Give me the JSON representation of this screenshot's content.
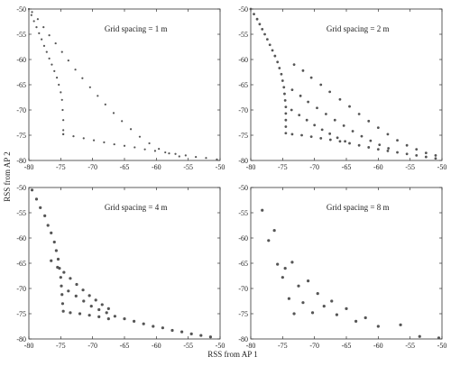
{
  "figure": {
    "xlabel": "RSS from AP 1",
    "ylabel": "RSS from AP 2"
  },
  "chart_data": [
    {
      "type": "scatter",
      "title": "Grid spacing = 1 m",
      "xlim": [
        -80,
        -50
      ],
      "ylim": [
        -80,
        -50
      ],
      "xticks": [
        -80,
        -75,
        -70,
        -65,
        -60,
        -55,
        -50
      ],
      "yticks": [
        -50,
        -55,
        -60,
        -65,
        -70,
        -75,
        -80
      ],
      "marker": "dot-dense",
      "points": [
        [
          -80.0,
          -50.0
        ],
        [
          -79.6,
          -51.2
        ],
        [
          -79.2,
          -52.4
        ],
        [
          -78.8,
          -53.6
        ],
        [
          -78.4,
          -54.8
        ],
        [
          -78.0,
          -56.0
        ],
        [
          -77.6,
          -57.3
        ],
        [
          -77.2,
          -58.5
        ],
        [
          -76.8,
          -59.8
        ],
        [
          -76.4,
          -61.0
        ],
        [
          -76.0,
          -62.3
        ],
        [
          -75.6,
          -63.6
        ],
        [
          -75.3,
          -65.0
        ],
        [
          -75.0,
          -66.5
        ],
        [
          -74.8,
          -68.0
        ],
        [
          -74.7,
          -70.0
        ],
        [
          -74.6,
          -72.0
        ],
        [
          -74.6,
          -74.0
        ],
        [
          -74.6,
          -74.8
        ],
        [
          -79.5,
          -50.6
        ],
        [
          -78.6,
          -52.0
        ],
        [
          -77.7,
          -53.6
        ],
        [
          -76.8,
          -55.2
        ],
        [
          -75.8,
          -56.8
        ],
        [
          -74.8,
          -58.5
        ],
        [
          -73.8,
          -60.2
        ],
        [
          -72.7,
          -62.0
        ],
        [
          -71.6,
          -63.7
        ],
        [
          -70.4,
          -65.5
        ],
        [
          -69.2,
          -67.2
        ],
        [
          -68.0,
          -68.9
        ],
        [
          -66.7,
          -70.6
        ],
        [
          -65.4,
          -72.2
        ],
        [
          -64.0,
          -73.8
        ],
        [
          -62.6,
          -75.3
        ],
        [
          -61.1,
          -76.6
        ],
        [
          -59.6,
          -77.7
        ],
        [
          -58.0,
          -78.6
        ],
        [
          -56.4,
          -79.2
        ],
        [
          -74.6,
          -74.8
        ],
        [
          -73.0,
          -75.2
        ],
        [
          -71.4,
          -75.6
        ],
        [
          -69.8,
          -76.0
        ],
        [
          -68.2,
          -76.4
        ],
        [
          -66.6,
          -76.8
        ],
        [
          -65.0,
          -77.1
        ],
        [
          -63.4,
          -77.4
        ],
        [
          -61.8,
          -77.8
        ],
        [
          -60.2,
          -78.1
        ],
        [
          -58.6,
          -78.4
        ],
        [
          -57.0,
          -78.7
        ],
        [
          -55.4,
          -79.0
        ],
        [
          -53.8,
          -79.3
        ],
        [
          -52.2,
          -79.5
        ],
        [
          -50.5,
          -79.8
        ]
      ]
    },
    {
      "type": "scatter",
      "title": "Grid spacing = 2 m",
      "xlim": [
        -80,
        -50
      ],
      "ylim": [
        -80,
        -50
      ],
      "xticks": [
        -80,
        -75,
        -70,
        -65,
        -60,
        -55,
        -50
      ],
      "yticks": [
        -50,
        -55,
        -60,
        -65,
        -70,
        -75,
        -80
      ],
      "marker": "dot-medium",
      "points": [
        [
          -80.0,
          -50.0
        ],
        [
          -79.5,
          -51.0
        ],
        [
          -79.0,
          -52.0
        ],
        [
          -78.6,
          -53.0
        ],
        [
          -78.2,
          -54.0
        ],
        [
          -77.8,
          -55.0
        ],
        [
          -77.4,
          -56.0
        ],
        [
          -77.0,
          -57.1
        ],
        [
          -76.6,
          -58.2
        ],
        [
          -76.2,
          -59.3
        ],
        [
          -75.8,
          -60.5
        ],
        [
          -75.5,
          -61.7
        ],
        [
          -75.2,
          -62.9
        ],
        [
          -75.0,
          -64.2
        ],
        [
          -74.8,
          -65.5
        ],
        [
          -74.7,
          -66.8
        ],
        [
          -74.6,
          -68.1
        ],
        [
          -74.5,
          -69.4
        ],
        [
          -74.5,
          -70.7
        ],
        [
          -74.5,
          -72.0
        ],
        [
          -74.5,
          -73.3
        ],
        [
          -74.5,
          -74.6
        ],
        [
          -73.2,
          -61.0
        ],
        [
          -71.8,
          -62.2
        ],
        [
          -70.5,
          -63.6
        ],
        [
          -69.0,
          -65.0
        ],
        [
          -67.6,
          -66.4
        ],
        [
          -66.0,
          -67.9
        ],
        [
          -64.5,
          -69.3
        ],
        [
          -63.0,
          -70.8
        ],
        [
          -61.5,
          -72.2
        ],
        [
          -60.0,
          -73.5
        ],
        [
          -58.5,
          -74.8
        ],
        [
          -57.0,
          -76.0
        ],
        [
          -55.5,
          -77.0
        ],
        [
          -54.0,
          -77.8
        ],
        [
          -52.5,
          -78.5
        ],
        [
          -51.0,
          -79.0
        ],
        [
          -73.5,
          -66.0
        ],
        [
          -72.2,
          -67.2
        ],
        [
          -71.0,
          -68.4
        ],
        [
          -69.6,
          -69.6
        ],
        [
          -68.2,
          -70.8
        ],
        [
          -66.8,
          -72.0
        ],
        [
          -65.4,
          -73.1
        ],
        [
          -64.0,
          -74.2
        ],
        [
          -62.6,
          -75.2
        ],
        [
          -61.2,
          -76.1
        ],
        [
          -59.8,
          -76.9
        ],
        [
          -58.4,
          -77.6
        ],
        [
          -73.6,
          -70.0
        ],
        [
          -72.4,
          -71.0
        ],
        [
          -71.2,
          -72.0
        ],
        [
          -70.0,
          -73.0
        ],
        [
          -68.8,
          -73.9
        ],
        [
          -67.6,
          -74.7
        ],
        [
          -66.4,
          -75.5
        ],
        [
          -65.2,
          -76.2
        ],
        [
          -73.5,
          -74.8
        ],
        [
          -72.0,
          -75.0
        ],
        [
          -70.5,
          -75.3
        ],
        [
          -69.0,
          -75.6
        ],
        [
          -67.5,
          -75.9
        ],
        [
          -66.0,
          -76.2
        ],
        [
          -64.5,
          -76.6
        ],
        [
          -63.0,
          -77.0
        ],
        [
          -61.5,
          -77.4
        ],
        [
          -60.0,
          -77.8
        ],
        [
          -58.5,
          -78.1
        ],
        [
          -57.0,
          -78.4
        ],
        [
          -55.5,
          -78.7
        ],
        [
          -54.0,
          -79.0
        ],
        [
          -52.5,
          -79.3
        ],
        [
          -51.0,
          -79.6
        ]
      ]
    },
    {
      "type": "scatter",
      "title": "Grid spacing = 4 m",
      "xlim": [
        -80,
        -50
      ],
      "ylim": [
        -80,
        -50
      ],
      "xticks": [
        -80,
        -75,
        -70,
        -65,
        -60,
        -55,
        -50
      ],
      "yticks": [
        -50,
        -55,
        -60,
        -65,
        -70,
        -75,
        -80
      ],
      "marker": "dot-sparse",
      "points": [
        [
          -79.5,
          -50.5
        ],
        [
          -78.8,
          -52.3
        ],
        [
          -78.2,
          -54.0
        ],
        [
          -77.5,
          -55.6
        ],
        [
          -77.0,
          -57.5
        ],
        [
          -76.5,
          -59.0
        ],
        [
          -76.0,
          -60.8
        ],
        [
          -75.7,
          -62.5
        ],
        [
          -75.4,
          -64.2
        ],
        [
          -75.2,
          -66.0
        ],
        [
          -75.0,
          -67.8
        ],
        [
          -74.9,
          -69.5
        ],
        [
          -74.8,
          -71.2
        ],
        [
          -74.7,
          -73.0
        ],
        [
          -74.6,
          -74.5
        ],
        [
          -76.5,
          -64.5
        ],
        [
          -75.5,
          -65.8
        ],
        [
          -74.5,
          -66.8
        ],
        [
          -73.5,
          -68.0
        ],
        [
          -72.5,
          -69.2
        ],
        [
          -71.5,
          -70.3
        ],
        [
          -70.5,
          -71.4
        ],
        [
          -69.5,
          -72.3
        ],
        [
          -68.5,
          -73.2
        ],
        [
          -67.5,
          -74.0
        ],
        [
          -73.8,
          -70.5
        ],
        [
          -72.6,
          -71.5
        ],
        [
          -71.4,
          -72.5
        ],
        [
          -70.2,
          -73.5
        ],
        [
          -69.0,
          -74.2
        ],
        [
          -67.8,
          -74.8
        ],
        [
          -66.5,
          -75.5
        ],
        [
          -65.0,
          -76.0
        ],
        [
          -63.5,
          -76.5
        ],
        [
          -62.0,
          -77.0
        ],
        [
          -60.5,
          -77.5
        ],
        [
          -59.0,
          -77.8
        ],
        [
          -57.5,
          -78.3
        ],
        [
          -56.0,
          -78.6
        ],
        [
          -54.5,
          -79.0
        ],
        [
          -53.0,
          -79.3
        ],
        [
          -51.5,
          -79.6
        ],
        [
          -73.5,
          -74.8
        ],
        [
          -72.0,
          -75.0
        ],
        [
          -70.5,
          -75.3
        ],
        [
          -69.0,
          -75.6
        ],
        [
          -67.5,
          -76.0
        ]
      ]
    },
    {
      "type": "scatter",
      "title": "Grid spacing = 8 m",
      "xlim": [
        -80,
        -50
      ],
      "ylim": [
        -80,
        -50
      ],
      "xticks": [
        -80,
        -75,
        -70,
        -65,
        -60,
        -55,
        -50
      ],
      "yticks": [
        -50,
        -55,
        -60,
        -65,
        -70,
        -75,
        -80
      ],
      "marker": "dot-sparse",
      "points": [
        [
          -78.2,
          -54.5
        ],
        [
          -77.2,
          -60.5
        ],
        [
          -76.3,
          -58.5
        ],
        [
          -75.8,
          -65.2
        ],
        [
          -75.0,
          -67.8
        ],
        [
          -74.6,
          -66.0
        ],
        [
          -74.0,
          -72.0
        ],
        [
          -73.5,
          -64.8
        ],
        [
          -73.2,
          -75.0
        ],
        [
          -72.5,
          -69.5
        ],
        [
          -71.8,
          -72.8
        ],
        [
          -71.0,
          -68.5
        ],
        [
          -70.3,
          -74.8
        ],
        [
          -69.5,
          -71.0
        ],
        [
          -68.5,
          -73.5
        ],
        [
          -67.3,
          -72.5
        ],
        [
          -66.5,
          -75.2
        ],
        [
          -65.0,
          -74.0
        ],
        [
          -63.5,
          -76.5
        ],
        [
          -62.0,
          -75.8
        ],
        [
          -60.0,
          -77.5
        ],
        [
          -56.5,
          -77.2
        ],
        [
          -53.5,
          -79.5
        ],
        [
          -50.5,
          -79.8
        ]
      ]
    }
  ]
}
